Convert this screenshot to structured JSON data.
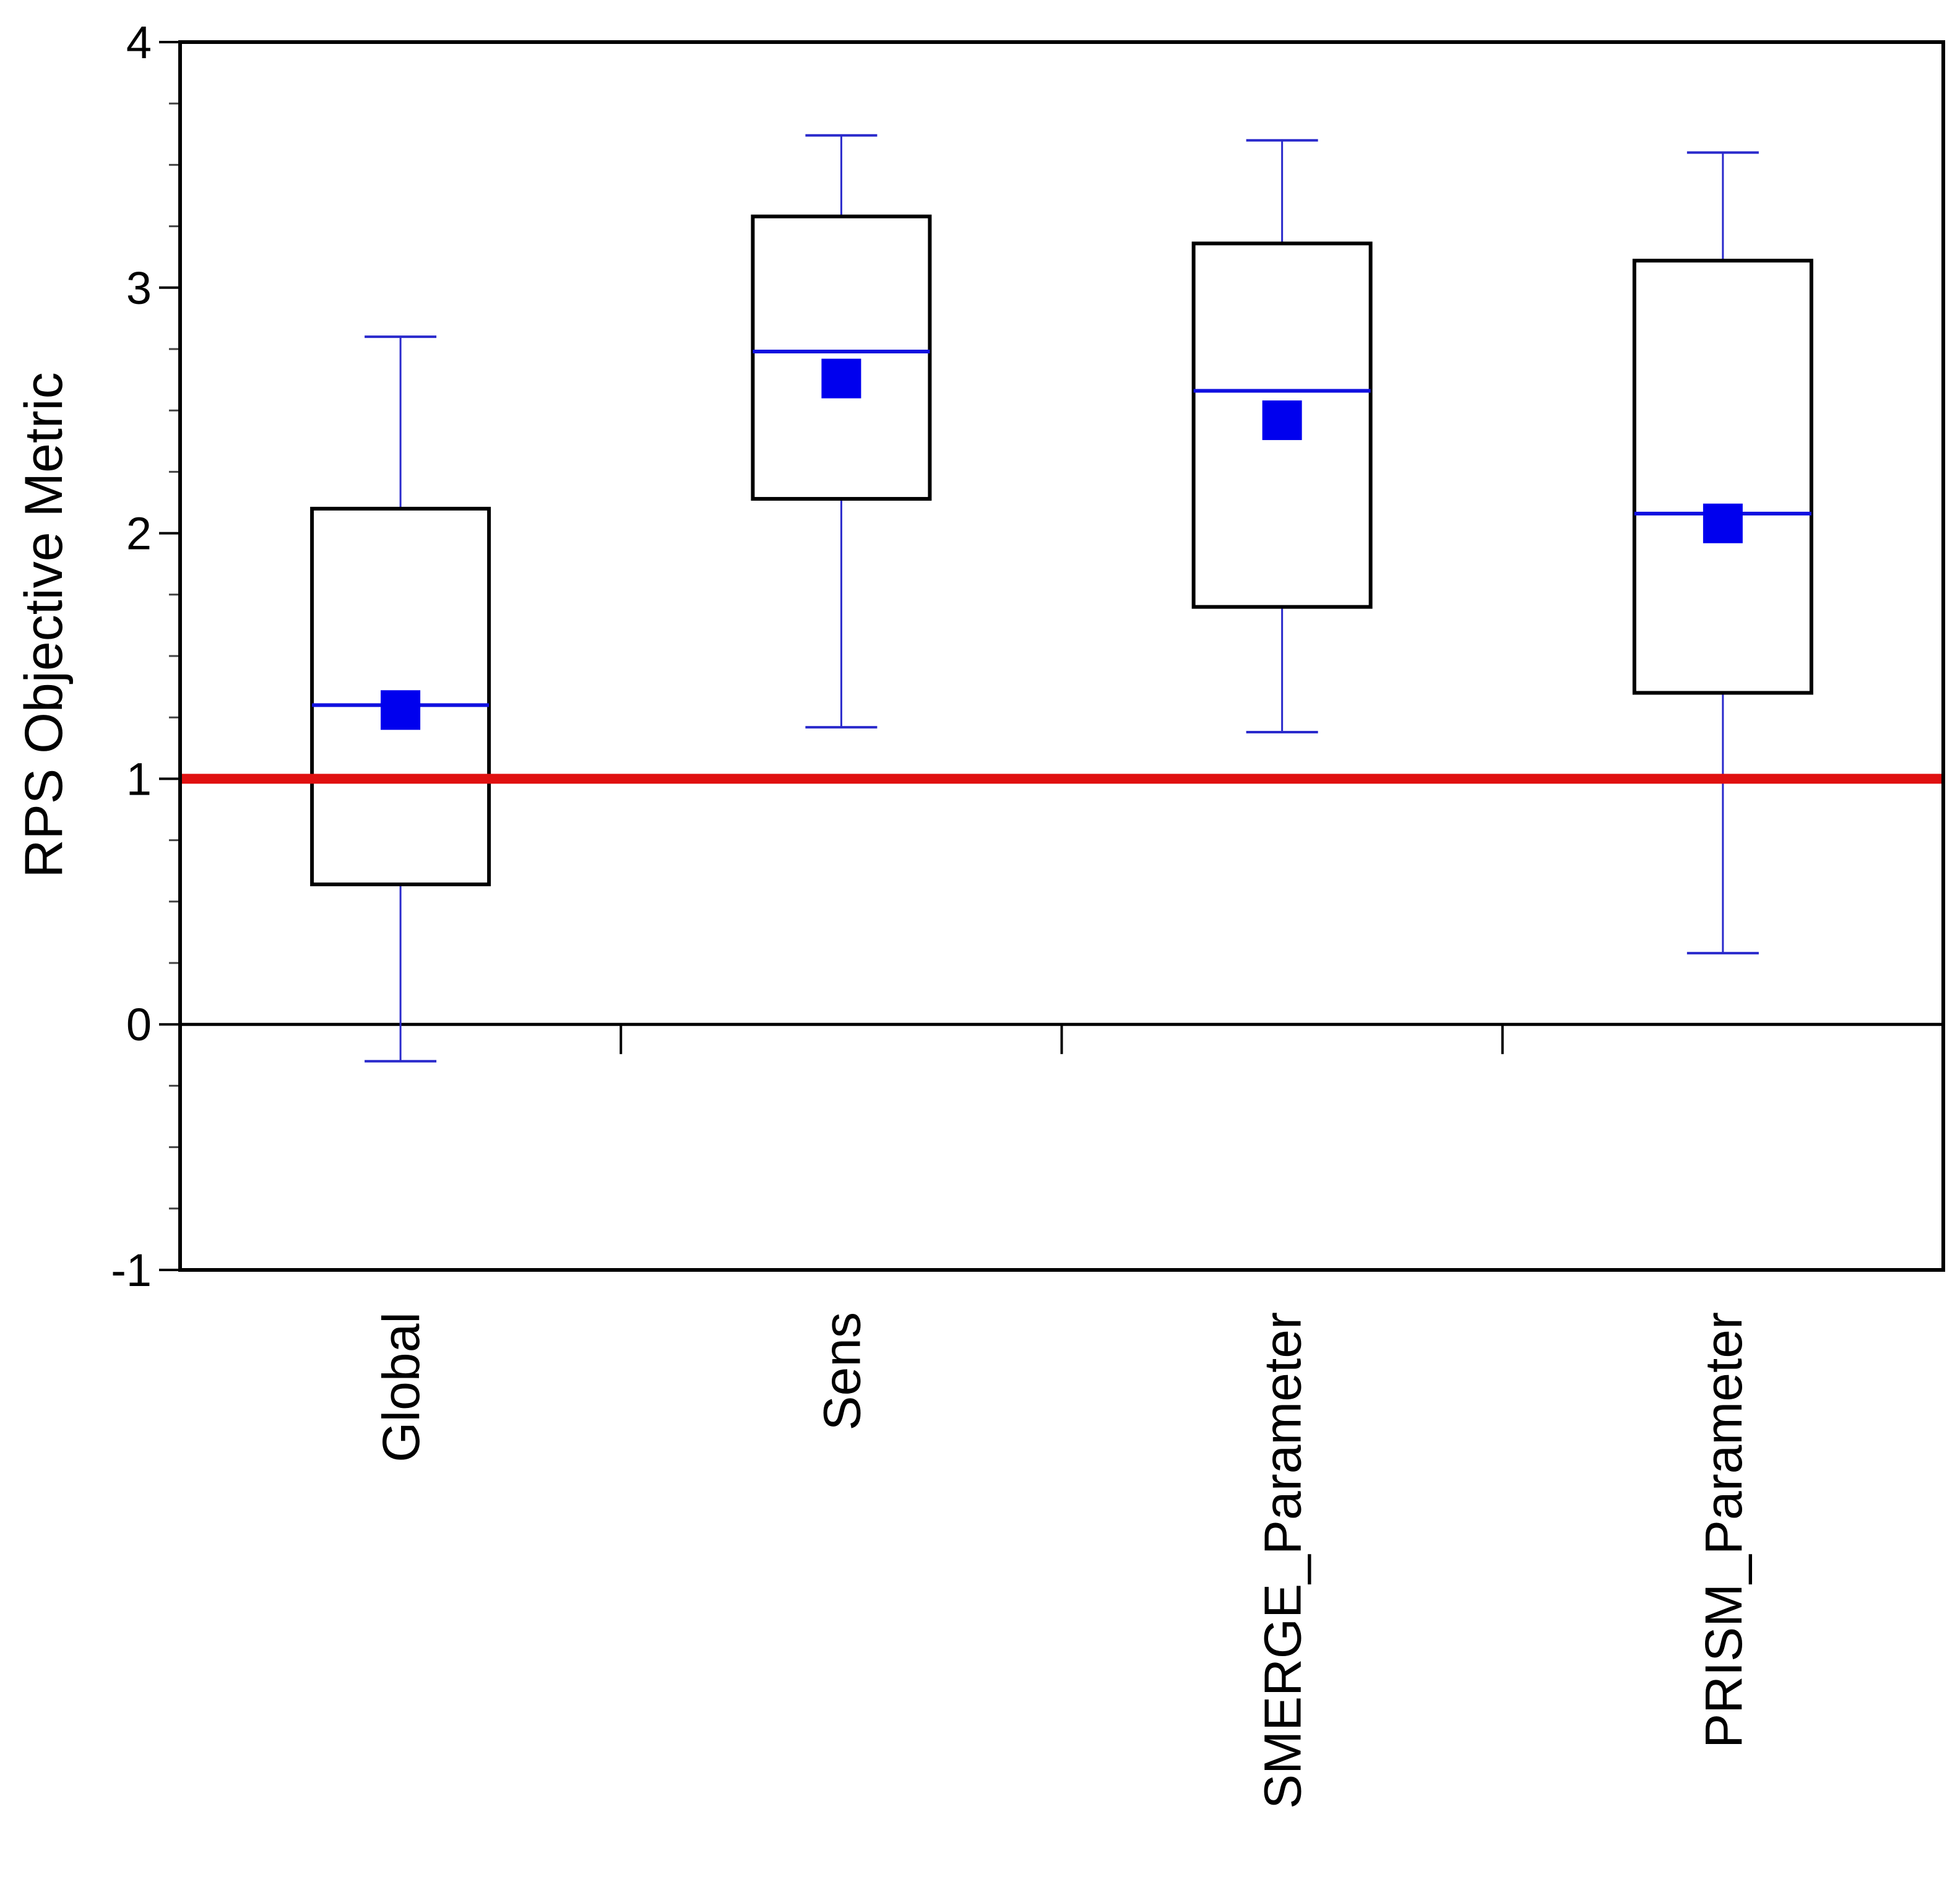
{
  "chart_data": {
    "type": "box",
    "title": "",
    "xlabel": "",
    "ylabel": "RPS Objective Metric",
    "ylim": [
      -1,
      4
    ],
    "yticks": [
      -1,
      0,
      1,
      2,
      3,
      4
    ],
    "ytick_labels": [
      "-1",
      "0",
      "1",
      "2",
      "3",
      "4"
    ],
    "yminor_step": 0.25,
    "reference_line": {
      "value": 1,
      "color": "#e01010"
    },
    "zero_line": {
      "value": 0,
      "color": "#000000"
    },
    "colors": {
      "box": "#000000",
      "whisker": "#2a2acc",
      "median": "#1010e0",
      "mean_marker": "#0000ee"
    },
    "categories": [
      "Global",
      "Sens",
      "SMERGE_Parameter",
      "PRISM_Parameter"
    ],
    "series": [
      {
        "name": "Global",
        "whisker_low": -0.15,
        "q1": 0.57,
        "median": 1.3,
        "mean": 1.28,
        "q3": 2.1,
        "whisker_high": 2.8
      },
      {
        "name": "Sens",
        "whisker_low": 1.21,
        "q1": 2.14,
        "median": 2.74,
        "mean": 2.63,
        "q3": 3.29,
        "whisker_high": 3.62
      },
      {
        "name": "SMERGE_Parameter",
        "whisker_low": 1.19,
        "q1": 1.7,
        "median": 2.58,
        "mean": 2.46,
        "q3": 3.18,
        "whisker_high": 3.6
      },
      {
        "name": "PRISM_Parameter",
        "whisker_low": 0.29,
        "q1": 1.35,
        "median": 2.08,
        "mean": 2.04,
        "q3": 3.11,
        "whisker_high": 3.55
      }
    ]
  }
}
